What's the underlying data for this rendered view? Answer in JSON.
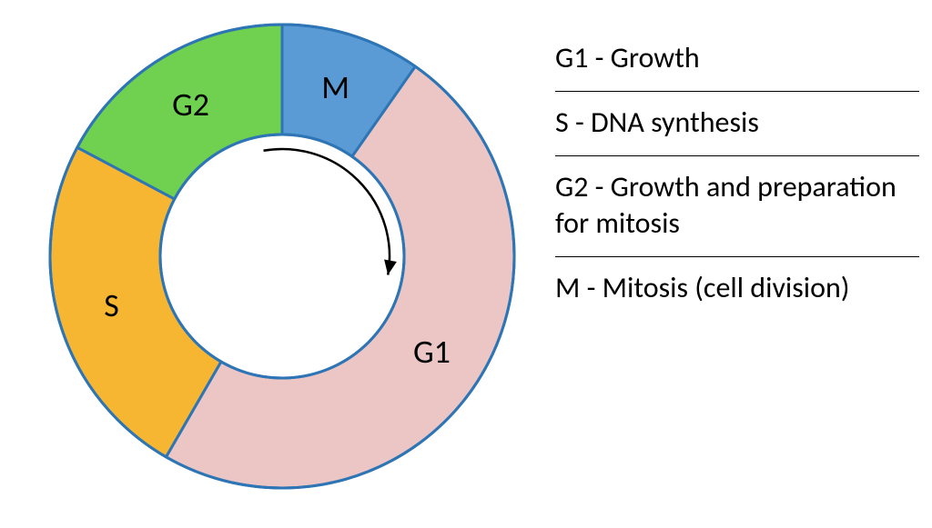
{
  "chart": {
    "type": "donut",
    "outer_radius": 255,
    "inner_radius": 134,
    "border_color": "#2e75b6",
    "border_width": 3,
    "background_color": "#ffffff",
    "arrow_color": "#000000",
    "slices": [
      {
        "label": "M",
        "start_deg": 55,
        "end_deg": 90,
        "color": "#5b9bd5",
        "label_r": 195
      },
      {
        "label": "G2",
        "start_deg": 90,
        "end_deg": 152,
        "color": "#70d050",
        "label_r": 195
      },
      {
        "label": "S",
        "start_deg": 152,
        "end_deg": 240,
        "color": "#f7b632",
        "label_r": 195
      },
      {
        "label": "G1",
        "start_deg": 240,
        "end_deg": 415,
        "color": "#ecc5c5",
        "label_r": 195
      }
    ],
    "label_fontsize": 36
  },
  "legend": {
    "items": [
      {
        "text": "G1 - Growth"
      },
      {
        "text": "S - DNA synthesis"
      },
      {
        "text": "G2 - Growth and preparation for mitosis"
      },
      {
        "text": "M - Mitosis (cell division)"
      }
    ],
    "fontsize": 32,
    "divider_color": "#000000"
  }
}
